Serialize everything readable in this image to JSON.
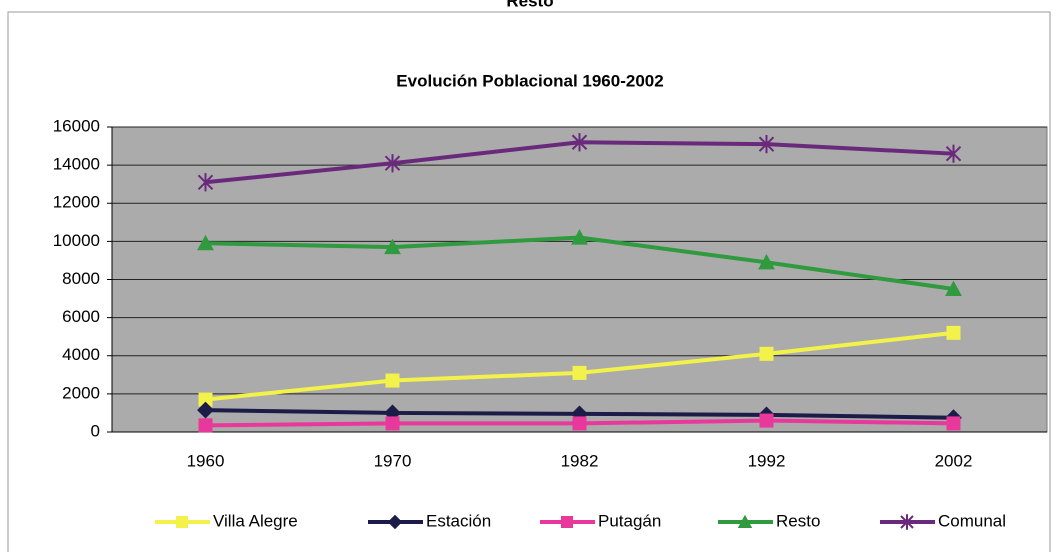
{
  "heading": "Resto",
  "chart_data": {
    "type": "line",
    "title": "Evolución Poblacional 1960-2002",
    "categories": [
      "1960",
      "1970",
      "1982",
      "1992",
      "2002"
    ],
    "series": [
      {
        "name": "Villa Alegre",
        "color": "#f2f24a",
        "marker": "square",
        "values": [
          1700,
          2700,
          3100,
          4100,
          5200
        ]
      },
      {
        "name": "Estación",
        "color": "#1c1c48",
        "marker": "diamond",
        "values": [
          1150,
          1000,
          950,
          900,
          750
        ]
      },
      {
        "name": "Putagán",
        "color": "#e8389c",
        "marker": "square",
        "values": [
          350,
          450,
          450,
          600,
          450
        ]
      },
      {
        "name": "Resto",
        "color": "#2f9a3e",
        "marker": "triangle",
        "values": [
          9900,
          9700,
          10200,
          8900,
          7500
        ]
      },
      {
        "name": "Comunal",
        "color": "#6a2a7c",
        "marker": "star",
        "values": [
          13100,
          14100,
          15200,
          15100,
          14600
        ]
      }
    ],
    "ylim": [
      0,
      16000
    ],
    "yticks": [
      0,
      2000,
      4000,
      6000,
      8000,
      10000,
      12000,
      14000,
      16000
    ],
    "grid": true,
    "legend": "bottom",
    "plot_color": "#ababab"
  }
}
